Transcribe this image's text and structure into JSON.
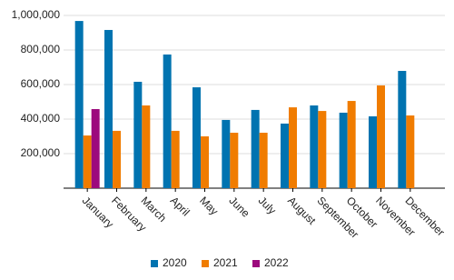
{
  "chart_data": {
    "type": "bar",
    "categories": [
      "January",
      "February",
      "March",
      "April",
      "May",
      "June",
      "July",
      "August",
      "September",
      "October",
      "November",
      "December"
    ],
    "series": [
      {
        "name": "2020",
        "color": "#0073b0",
        "values": [
          968000,
          916000,
          616000,
          774000,
          584000,
          395000,
          453000,
          374000,
          479000,
          437000,
          416000,
          679000
        ]
      },
      {
        "name": "2021",
        "color": "#f07c00",
        "values": [
          305000,
          332000,
          479000,
          332000,
          300000,
          321000,
          321000,
          468000,
          447000,
          505000,
          595000,
          421000
        ]
      },
      {
        "name": "2022",
        "color": "#9c0a7d",
        "values": [
          458000,
          null,
          null,
          null,
          null,
          null,
          null,
          null,
          null,
          null,
          null,
          null
        ]
      }
    ],
    "ylim": [
      0,
      1000000
    ],
    "yticks": [
      {
        "value": 200000,
        "label": "200,000"
      },
      {
        "value": 400000,
        "label": "400,000"
      },
      {
        "value": 600000,
        "label": "600,000"
      },
      {
        "value": 800000,
        "label": "800,000"
      },
      {
        "value": 1000000,
        "label": "1,000,000"
      }
    ],
    "grid": true,
    "legend": "bottom"
  }
}
